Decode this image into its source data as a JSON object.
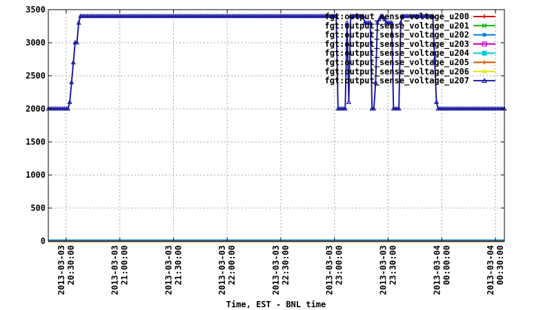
{
  "chart_data": {
    "type": "line",
    "xlabel": "Time, EST - BNL time",
    "ylabel": "",
    "ylim": [
      0,
      3500
    ],
    "yticks": [
      0,
      500,
      1000,
      1500,
      2000,
      2500,
      3000,
      3500
    ],
    "x_range_minutes": [
      -10,
      245
    ],
    "xticks": [
      {
        "t": 0,
        "label": [
          "2013-03-03",
          "20:30:00"
        ]
      },
      {
        "t": 30,
        "label": [
          "2013-03-03",
          "21:00:00"
        ]
      },
      {
        "t": 60,
        "label": [
          "2013-03-03",
          "21:30:00"
        ]
      },
      {
        "t": 90,
        "label": [
          "2013-03-03",
          "22:00:00"
        ]
      },
      {
        "t": 120,
        "label": [
          "2013-03-03",
          "22:30:00"
        ]
      },
      {
        "t": 150,
        "label": [
          "2013-03-03",
          "23:00:00"
        ]
      },
      {
        "t": 180,
        "label": [
          "2013-03-03",
          "23:30:00"
        ]
      },
      {
        "t": 210,
        "label": [
          "2013-03-04",
          "00:00:00"
        ]
      },
      {
        "t": 240,
        "label": [
          "2013-03-04",
          "00:30:00"
        ]
      }
    ],
    "grid": true,
    "legend_position": "top-right",
    "main_series": {
      "name": "fgt:output_sense_voltage_u207",
      "color": "#1a1aa0",
      "marker": "triangle",
      "points": [
        [
          -10,
          2000
        ],
        [
          0,
          2000
        ],
        [
          1,
          2000
        ],
        [
          2,
          2100
        ],
        [
          3,
          2400
        ],
        [
          4,
          2700
        ],
        [
          5,
          3000
        ],
        [
          6,
          3000
        ],
        [
          7,
          3300
        ],
        [
          8,
          3400
        ],
        [
          151,
          3400
        ],
        [
          152,
          2000
        ],
        [
          156,
          2000
        ],
        [
          157,
          3300
        ],
        [
          158,
          2100
        ],
        [
          159,
          3400
        ],
        [
          166,
          3400
        ],
        [
          167,
          3300
        ],
        [
          170,
          3300
        ],
        [
          171,
          2000
        ],
        [
          172,
          2000
        ],
        [
          173,
          2400
        ],
        [
          174,
          3300
        ],
        [
          176,
          3400
        ],
        [
          177,
          3400
        ],
        [
          179,
          3300
        ],
        [
          182,
          3300
        ],
        [
          183,
          2000
        ],
        [
          186,
          2000
        ],
        [
          187,
          3300
        ],
        [
          188,
          3400
        ],
        [
          205,
          3400
        ],
        [
          207,
          2100
        ],
        [
          208,
          2000
        ],
        [
          245,
          2000
        ]
      ]
    },
    "zero_series_colors": [
      "#cc0000",
      "#00bb00",
      "#0077dd",
      "#cc00cc",
      "#00cccc",
      "#d05000",
      "#e8e800"
    ],
    "series": [
      {
        "name": "fgt:output_sense_voltage_u200",
        "color": "#dd0000",
        "marker": "plus"
      },
      {
        "name": "fgt:output_sense_voltage_u201",
        "color": "#00bb00",
        "marker": "x"
      },
      {
        "name": "fgt:output_sense_voltage_u202",
        "color": "#0077dd",
        "marker": "star"
      },
      {
        "name": "fgt:output_sense_voltage_u203",
        "color": "#cc00cc",
        "marker": "square"
      },
      {
        "name": "fgt:output_sense_voltage_u204",
        "color": "#00cccc",
        "marker": "filled-square"
      },
      {
        "name": "fgt:output_sense_voltage_u205",
        "color": "#d05000",
        "marker": "plus"
      },
      {
        "name": "fgt:output_sense_voltage_u206",
        "color": "#e8e800",
        "marker": "star"
      },
      {
        "name": "fgt:output_sense_voltage_u207",
        "color": "#1a1aa0",
        "marker": "triangle"
      }
    ]
  }
}
